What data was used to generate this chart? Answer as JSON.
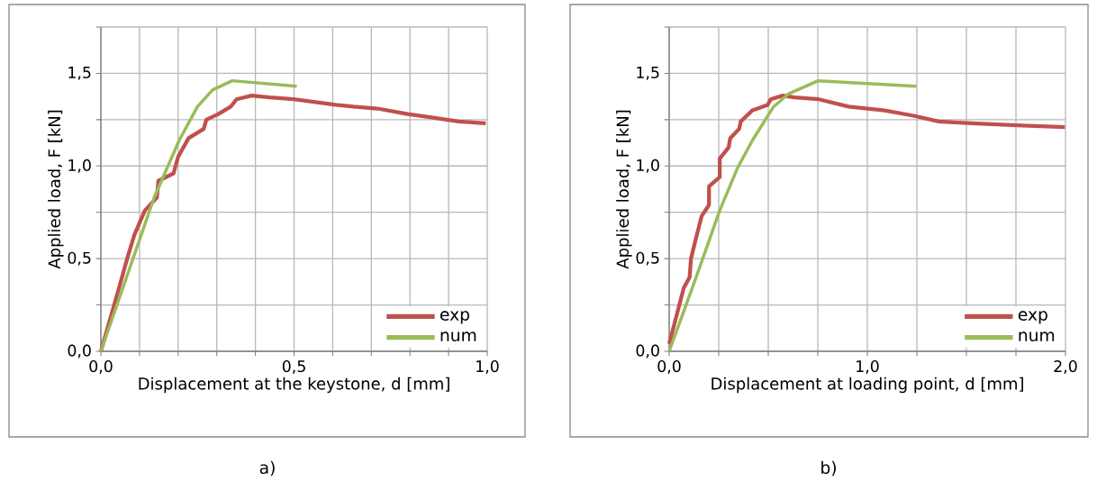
{
  "chart_data": [
    {
      "type": "line",
      "xlabel": "Displacement at the keystone, d [mm]",
      "ylabel": "Applied load, F [kN]",
      "xlim": [
        0,
        1.0
      ],
      "ylim": [
        0,
        1.75
      ],
      "xticks": [
        {
          "value": 0,
          "label": "0,0"
        },
        {
          "value": 0.1,
          "label": null
        },
        {
          "value": 0.2,
          "label": null
        },
        {
          "value": 0.3,
          "label": null
        },
        {
          "value": 0.4,
          "label": null
        },
        {
          "value": 0.5,
          "label": "0,5"
        },
        {
          "value": 0.6,
          "label": null
        },
        {
          "value": 0.7,
          "label": null
        },
        {
          "value": 0.8,
          "label": null
        },
        {
          "value": 0.9,
          "label": null
        },
        {
          "value": 1.0,
          "label": "1,0"
        }
      ],
      "yticks": [
        {
          "value": 0,
          "label": "0,0"
        },
        {
          "value": 0.25,
          "label": null
        },
        {
          "value": 0.5,
          "label": "0,5"
        },
        {
          "value": 0.75,
          "label": null
        },
        {
          "value": 1.0,
          "label": "1,0"
        },
        {
          "value": 1.25,
          "label": null
        },
        {
          "value": 1.5,
          "label": "1,5"
        },
        {
          "value": 1.75,
          "label": null
        }
      ],
      "grid": true,
      "legend": "bottom right",
      "marker": "none",
      "annotations": [
        "a)"
      ],
      "series": [
        {
          "name": "exp",
          "color": "#c0504d",
          "x": [
            0,
            0.048,
            0.068,
            0.087,
            0.114,
            0.145,
            0.149,
            0.188,
            0.2,
            0.227,
            0.266,
            0.273,
            0.304,
            0.336,
            0.351,
            0.39,
            0.437,
            0.499,
            0.538,
            0.608,
            0.654,
            0.716,
            0.794,
            0.864,
            0.926,
            0.996
          ],
          "values": [
            0,
            0.35,
            0.5,
            0.63,
            0.76,
            0.83,
            0.92,
            0.96,
            1.05,
            1.15,
            1.2,
            1.25,
            1.28,
            1.32,
            1.36,
            1.38,
            1.37,
            1.36,
            1.35,
            1.33,
            1.32,
            1.31,
            1.28,
            1.26,
            1.24,
            1.23
          ]
        },
        {
          "name": "num",
          "color": "#9bbb59",
          "x": [
            0,
            0.138,
            0.203,
            0.25,
            0.289,
            0.34,
            0.507
          ],
          "values": [
            0,
            0.83,
            1.14,
            1.32,
            1.41,
            1.46,
            1.43
          ]
        }
      ]
    },
    {
      "type": "line",
      "xlabel": "Displacement at loading point,  d [mm]",
      "ylabel": "Applied load, F [kN]",
      "xlim": [
        0,
        2.0
      ],
      "ylim": [
        0,
        1.75
      ],
      "xticks": [
        {
          "value": 0,
          "label": "0,0"
        },
        {
          "value": 0.25,
          "label": null
        },
        {
          "value": 0.5,
          "label": null
        },
        {
          "value": 0.75,
          "label": null
        },
        {
          "value": 1.0,
          "label": "1,0"
        },
        {
          "value": 1.25,
          "label": null
        },
        {
          "value": 1.5,
          "label": null
        },
        {
          "value": 1.75,
          "label": null
        },
        {
          "value": 2.0,
          "label": "2,0"
        }
      ],
      "yticks": [
        {
          "value": 0,
          "label": "0,0"
        },
        {
          "value": 0.25,
          "label": null
        },
        {
          "value": 0.5,
          "label": "0,5"
        },
        {
          "value": 0.75,
          "label": null
        },
        {
          "value": 1.0,
          "label": "1,0"
        },
        {
          "value": 1.25,
          "label": null
        },
        {
          "value": 1.5,
          "label": "1,5"
        },
        {
          "value": 1.75,
          "label": null
        }
      ],
      "grid": true,
      "legend": "bottom right",
      "marker": "none",
      "annotations": [
        "b)"
      ],
      "series": [
        {
          "name": "exp",
          "color": "#c0504d",
          "x": [
            0,
            0.073,
            0.103,
            0.11,
            0.133,
            0.164,
            0.201,
            0.201,
            0.255,
            0.255,
            0.3,
            0.308,
            0.353,
            0.361,
            0.42,
            0.497,
            0.512,
            0.573,
            0.633,
            0.755,
            0.906,
            1.088,
            1.239,
            1.361,
            1.527,
            1.755,
            1.997
          ],
          "values": [
            0.04,
            0.34,
            0.4,
            0.5,
            0.6,
            0.73,
            0.79,
            0.89,
            0.94,
            1.04,
            1.1,
            1.15,
            1.2,
            1.24,
            1.3,
            1.33,
            1.36,
            1.38,
            1.37,
            1.36,
            1.32,
            1.3,
            1.27,
            1.24,
            1.23,
            1.22,
            1.21
          ]
        },
        {
          "name": "num",
          "color": "#9bbb59",
          "x": [
            0,
            0.133,
            0.255,
            0.345,
            0.421,
            0.527,
            0.603,
            0.752,
            1.247
          ],
          "values": [
            0,
            0.39,
            0.76,
            0.99,
            1.14,
            1.32,
            1.39,
            1.46,
            1.43
          ]
        }
      ]
    }
  ]
}
